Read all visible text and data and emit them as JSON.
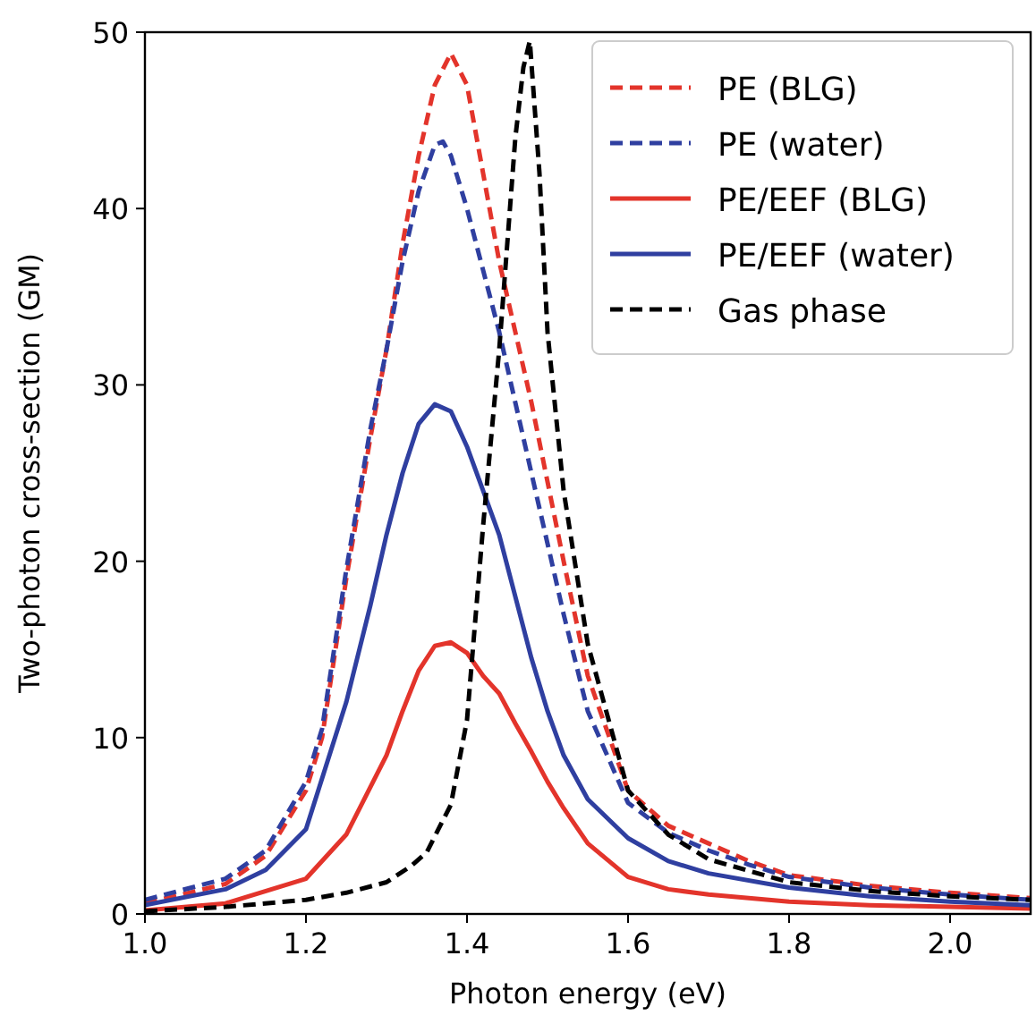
{
  "chart_data": {
    "type": "line",
    "xlabel": "Photon energy (eV)",
    "ylabel": "Two-photon cross-section (GM)",
    "xlim": [
      1.0,
      2.1
    ],
    "xticks": [
      {
        "value": 1.0,
        "label": "1.0"
      },
      {
        "value": 1.2,
        "label": "1.2"
      },
      {
        "value": 1.4,
        "label": "1.4"
      },
      {
        "value": 1.6,
        "label": "1.6"
      },
      {
        "value": 1.8,
        "label": "1.8"
      },
      {
        "value": 2.0,
        "label": "2.0"
      }
    ],
    "ylim": [
      0,
      50
    ],
    "yticks": [
      0,
      10,
      20,
      30,
      40,
      50
    ],
    "grid": false,
    "legend": "top right",
    "marker": "none",
    "series": [
      {
        "name": "PE (BLG)",
        "color": "#e3342b",
        "line_style": "dashed",
        "x": [
          1.0,
          1.1,
          1.15,
          1.2,
          1.22,
          1.25,
          1.28,
          1.3,
          1.32,
          1.34,
          1.36,
          1.38,
          1.4,
          1.42,
          1.44,
          1.46,
          1.48,
          1.5,
          1.52,
          1.55,
          1.6,
          1.65,
          1.7,
          1.75,
          1.8,
          1.9,
          2.0,
          2.1
        ],
        "values": [
          0.6,
          1.7,
          3.3,
          7,
          10,
          19,
          27,
          32,
          38,
          43,
          47,
          48.8,
          47,
          42,
          37,
          33,
          29,
          24.5,
          20,
          13.5,
          7,
          5,
          4,
          3,
          2.2,
          1.6,
          1.2,
          0.9
        ]
      },
      {
        "name": "PE (water)",
        "color": "#2f3fa0",
        "line_style": "dashed",
        "x": [
          1.0,
          1.1,
          1.15,
          1.2,
          1.22,
          1.25,
          1.28,
          1.3,
          1.32,
          1.34,
          1.36,
          1.37,
          1.38,
          1.4,
          1.42,
          1.44,
          1.46,
          1.48,
          1.5,
          1.52,
          1.55,
          1.6,
          1.65,
          1.7,
          1.75,
          1.8,
          1.9,
          2.0,
          2.1
        ],
        "values": [
          0.8,
          2,
          3.6,
          7.5,
          10.5,
          19.5,
          27.5,
          32,
          37,
          41,
          43.6,
          43.8,
          43,
          40,
          36.5,
          33,
          29,
          25,
          21,
          17,
          11.5,
          6.3,
          4.6,
          3.6,
          2.8,
          2.1,
          1.5,
          1.1,
          0.8
        ]
      },
      {
        "name": "PE/EEF (BLG)",
        "color": "#e3342b",
        "line_style": "solid",
        "x": [
          1.0,
          1.1,
          1.2,
          1.25,
          1.3,
          1.32,
          1.34,
          1.36,
          1.38,
          1.4,
          1.42,
          1.44,
          1.46,
          1.48,
          1.5,
          1.52,
          1.55,
          1.6,
          1.65,
          1.7,
          1.8,
          1.9,
          2.0,
          2.1
        ],
        "values": [
          0.2,
          0.6,
          2,
          4.5,
          9,
          11.5,
          13.8,
          15.2,
          15.4,
          14.8,
          13.5,
          12.5,
          10.8,
          9.2,
          7.5,
          6,
          4,
          2.1,
          1.4,
          1.1,
          0.7,
          0.5,
          0.4,
          0.3
        ]
      },
      {
        "name": "PE/EEF (water)",
        "color": "#2f3fa0",
        "line_style": "solid",
        "x": [
          1.0,
          1.1,
          1.15,
          1.2,
          1.25,
          1.28,
          1.3,
          1.32,
          1.34,
          1.36,
          1.38,
          1.4,
          1.42,
          1.44,
          1.46,
          1.48,
          1.5,
          1.52,
          1.55,
          1.6,
          1.65,
          1.7,
          1.8,
          1.9,
          2.0,
          2.1
        ],
        "values": [
          0.5,
          1.4,
          2.5,
          4.8,
          12,
          17.5,
          21.5,
          25,
          27.8,
          28.9,
          28.5,
          26.5,
          24,
          21.5,
          18,
          14.5,
          11.5,
          9,
          6.5,
          4.3,
          3,
          2.3,
          1.5,
          1,
          0.7,
          0.5
        ]
      },
      {
        "name": "Gas phase",
        "color": "#000000",
        "line_style": "dashed",
        "x": [
          1.0,
          1.1,
          1.2,
          1.25,
          1.3,
          1.33,
          1.35,
          1.38,
          1.4,
          1.42,
          1.44,
          1.46,
          1.47,
          1.478,
          1.49,
          1.5,
          1.52,
          1.55,
          1.6,
          1.65,
          1.7,
          1.8,
          1.9,
          2.0,
          2.1
        ],
        "values": [
          0.15,
          0.4,
          0.8,
          1.2,
          1.8,
          2.7,
          3.5,
          6.2,
          11,
          22,
          32,
          44,
          48,
          49.5,
          42,
          33,
          24,
          15.3,
          7,
          4.5,
          3.1,
          1.8,
          1.3,
          1,
          0.8
        ]
      }
    ]
  }
}
